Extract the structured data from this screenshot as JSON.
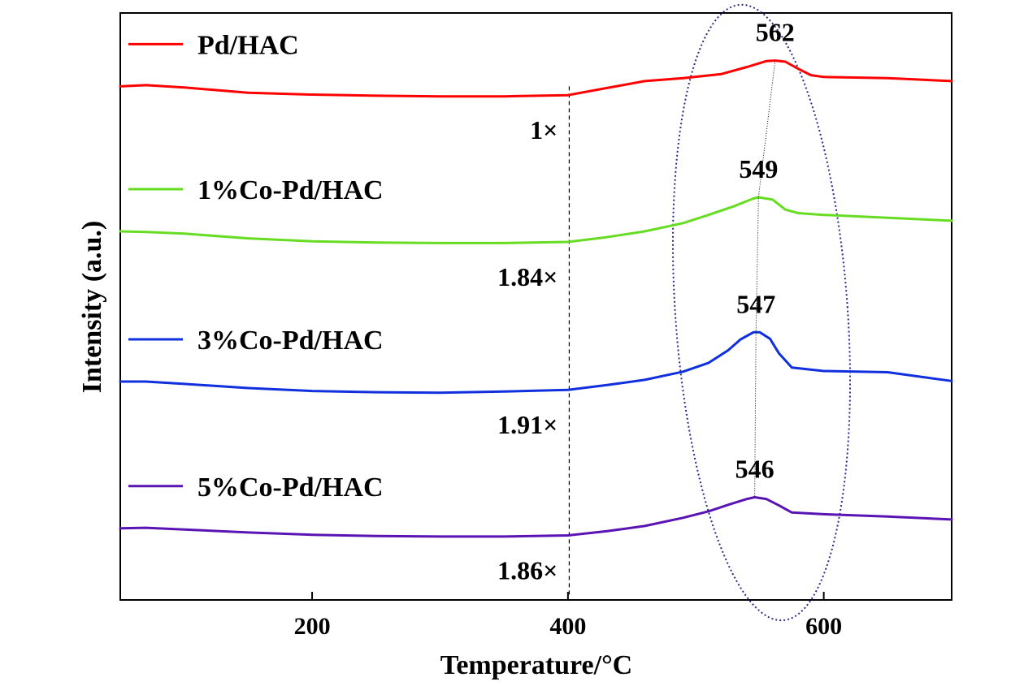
{
  "chart_data": {
    "type": "line",
    "xlabel": "Temperature/°C",
    "ylabel": "Intensity (a.u.)",
    "xlim": [
      50,
      700
    ],
    "ylim": [
      0,
      1
    ],
    "x_ticks": [
      200,
      400,
      600
    ],
    "y_ticks_shown": false,
    "grid": false,
    "legend_placement": "inline, left of each curve",
    "reference_line_x": 401,
    "series": [
      {
        "name": "Pd/HAC",
        "color": "#ff0000",
        "peak_label": "562",
        "scale_label": "1×",
        "x": [
          50,
          70,
          100,
          150,
          200,
          250,
          300,
          350,
          400,
          430,
          460,
          490,
          520,
          540,
          555,
          562,
          570,
          580,
          590,
          600,
          650,
          700
        ],
        "y": [
          0.875,
          0.877,
          0.873,
          0.864,
          0.861,
          0.859,
          0.858,
          0.858,
          0.86,
          0.872,
          0.884,
          0.889,
          0.896,
          0.908,
          0.918,
          0.919,
          0.917,
          0.905,
          0.894,
          0.891,
          0.889,
          0.884
        ]
      },
      {
        "name": "1%Co-Pd/HAC",
        "color": "#66dd22",
        "peak_label": "549",
        "scale_label": "1.84×",
        "x": [
          50,
          70,
          100,
          150,
          200,
          250,
          300,
          350,
          400,
          430,
          460,
          490,
          510,
          530,
          545,
          549,
          560,
          570,
          580,
          600,
          650,
          700
        ],
        "y": [
          0.628,
          0.627,
          0.624,
          0.616,
          0.611,
          0.609,
          0.608,
          0.608,
          0.61,
          0.618,
          0.628,
          0.642,
          0.656,
          0.671,
          0.684,
          0.686,
          0.682,
          0.665,
          0.659,
          0.656,
          0.651,
          0.646
        ]
      },
      {
        "name": "3%Co-Pd/HAC",
        "color": "#1030dd",
        "peak_label": "547",
        "scale_label": "1.91×",
        "x": [
          50,
          70,
          100,
          150,
          200,
          250,
          300,
          350,
          400,
          430,
          460,
          490,
          510,
          525,
          535,
          545,
          550,
          558,
          565,
          575,
          600,
          650,
          700
        ],
        "y": [
          0.372,
          0.372,
          0.368,
          0.361,
          0.356,
          0.354,
          0.353,
          0.355,
          0.358,
          0.366,
          0.375,
          0.389,
          0.404,
          0.425,
          0.444,
          0.456,
          0.456,
          0.445,
          0.42,
          0.396,
          0.39,
          0.388,
          0.373
        ]
      },
      {
        "name": "5%Co-Pd/HAC",
        "color": "#5a14b4",
        "peak_label": "546",
        "scale_label": "1.86×",
        "x": [
          50,
          70,
          100,
          150,
          200,
          250,
          300,
          350,
          400,
          430,
          460,
          490,
          510,
          525,
          540,
          546,
          555,
          565,
          575,
          600,
          650,
          700
        ],
        "y": [
          0.122,
          0.123,
          0.12,
          0.115,
          0.111,
          0.109,
          0.108,
          0.108,
          0.11,
          0.117,
          0.126,
          0.14,
          0.151,
          0.162,
          0.172,
          0.175,
          0.172,
          0.161,
          0.149,
          0.146,
          0.142,
          0.137
        ]
      }
    ]
  }
}
